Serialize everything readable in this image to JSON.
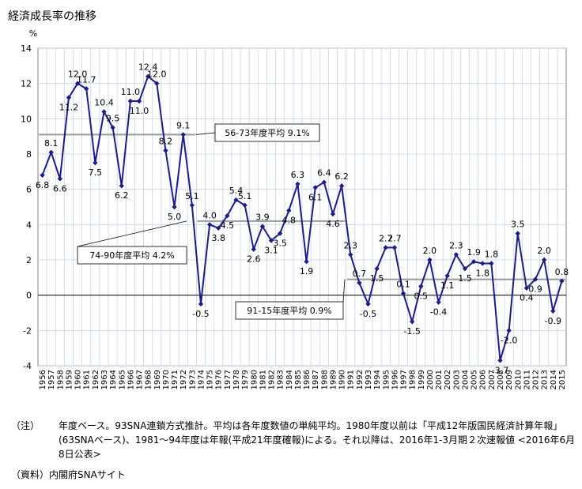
{
  "title": "経済成長率の推移",
  "chart_data": {
    "type": "line",
    "ylabel": "%",
    "ylim": [
      -4,
      14
    ],
    "yticks": [
      -4,
      -2,
      0,
      2,
      4,
      6,
      8,
      10,
      12,
      14
    ],
    "grid": true,
    "series_color": "#1c1c8c",
    "avg_line_color": "#9a9a9a",
    "x": [
      1956,
      1957,
      1958,
      1959,
      1960,
      1961,
      1962,
      1963,
      1964,
      1965,
      1966,
      1967,
      1968,
      1969,
      1970,
      1971,
      1972,
      1973,
      1974,
      1975,
      1976,
      1977,
      1978,
      1979,
      1980,
      1981,
      1982,
      1983,
      1984,
      1985,
      1986,
      1987,
      1988,
      1989,
      1990,
      1991,
      1992,
      1993,
      1994,
      1995,
      1996,
      1997,
      1998,
      1999,
      2000,
      2001,
      2002,
      2003,
      2004,
      2005,
      2006,
      2007,
      2008,
      2009,
      2010,
      2011,
      2012,
      2013,
      2014,
      2015
    ],
    "values": [
      6.8,
      8.1,
      6.6,
      11.2,
      12.0,
      11.7,
      7.5,
      10.4,
      9.5,
      6.2,
      11.0,
      11.0,
      12.4,
      12.0,
      8.2,
      5.0,
      9.1,
      5.1,
      -0.5,
      4.0,
      3.8,
      4.5,
      5.4,
      5.1,
      2.6,
      3.9,
      3.1,
      3.5,
      4.8,
      6.3,
      1.9,
      6.1,
      6.4,
      4.6,
      6.2,
      2.3,
      0.7,
      -0.5,
      1.5,
      2.7,
      2.7,
      0.1,
      -1.5,
      0.5,
      2.0,
      -0.4,
      1.1,
      2.3,
      1.5,
      1.9,
      1.8,
      1.8,
      -3.7,
      -2.0,
      3.5,
      0.4,
      0.9,
      2.0,
      -0.9,
      0.8
    ],
    "averages": [
      {
        "label": "56-73年度平均 9.1%",
        "value": 9.1,
        "from": 1956,
        "to": 1973
      },
      {
        "label": "74-90年度平均 4.2%",
        "value": 4.2,
        "from": 1974,
        "to": 1990
      },
      {
        "label": "91-15年度平均 0.9%",
        "value": 0.9,
        "from": 1991,
        "to": 2015
      }
    ]
  },
  "notes": {
    "note_tag": "（注）",
    "note_text": "年度ベース。93SNA連鎖方式推計。平均は各年度数値の単純平均。1980年度以前は「平成12年版国民経済計算年報」(63SNAベース)、1981～94年度は年報(平成21年度確報)による。それ以降は、2016年1-3月期２次速報値 <2016年6月8日公表>",
    "source": "（資料）内閣府SNAサイト"
  }
}
